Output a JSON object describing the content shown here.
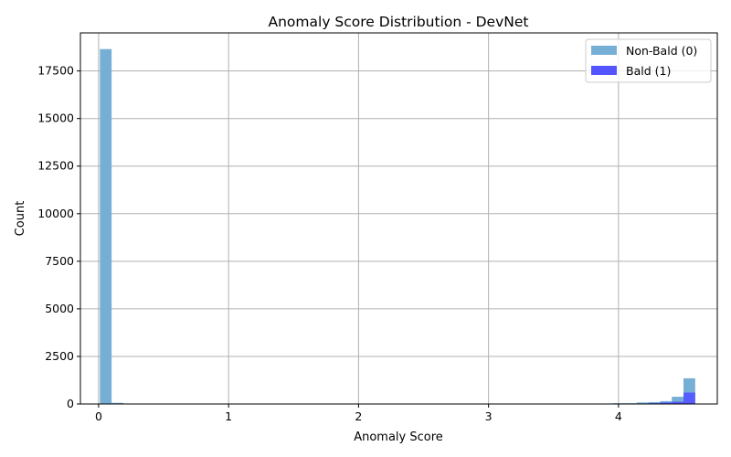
{
  "chart_data": {
    "type": "bar",
    "subtype": "histogram",
    "title": "Anomaly Score Distribution - DevNet",
    "xlabel": "Anomaly Score",
    "ylabel": "Count",
    "xlim": [
      -0.14,
      4.76
    ],
    "ylim": [
      0,
      19500
    ],
    "xticks": [
      0,
      1,
      2,
      3,
      4
    ],
    "yticks": [
      0,
      2500,
      5000,
      7500,
      10000,
      12500,
      15000,
      17500
    ],
    "grid": true,
    "legend_position": "top-right",
    "bin_width": 0.09,
    "series": [
      {
        "name": "Non-Bald (0)",
        "color": "#77aed6",
        "bins": [
          {
            "x0": 0.01,
            "count": 18650
          },
          {
            "x0": 0.1,
            "count": 60
          },
          {
            "x0": 3.96,
            "count": 40
          },
          {
            "x0": 4.05,
            "count": 40
          },
          {
            "x0": 4.14,
            "count": 80
          },
          {
            "x0": 4.23,
            "count": 100
          },
          {
            "x0": 4.32,
            "count": 150
          },
          {
            "x0": 4.41,
            "count": 380
          },
          {
            "x0": 4.5,
            "count": 1350
          }
        ]
      },
      {
        "name": "Bald (1)",
        "color": "#5555ff",
        "bins": [
          {
            "x0": 4.14,
            "count": 10
          },
          {
            "x0": 4.23,
            "count": 40
          },
          {
            "x0": 4.32,
            "count": 80
          },
          {
            "x0": 4.41,
            "count": 120
          },
          {
            "x0": 4.5,
            "count": 600
          }
        ]
      }
    ]
  }
}
